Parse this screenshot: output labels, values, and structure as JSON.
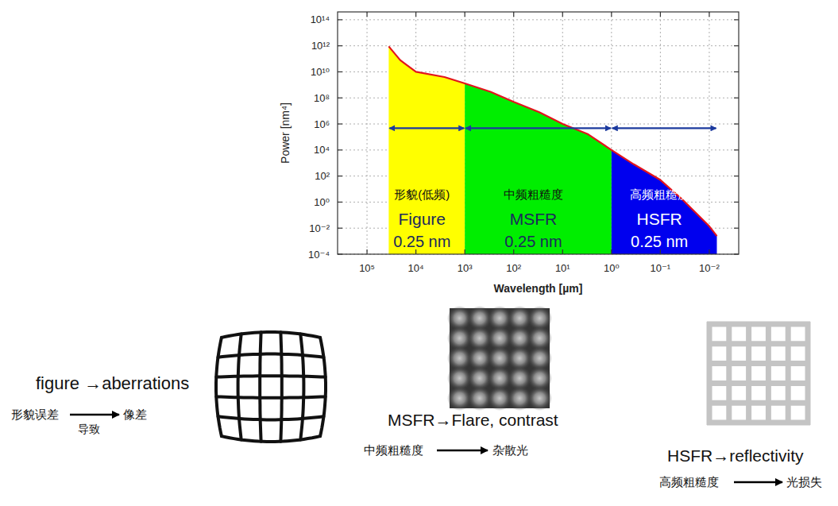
{
  "chart_data": {
    "type": "area",
    "log": true,
    "grid": true,
    "x_label": "Wavelength [µm]",
    "y_label": "Power [nm⁴]",
    "xlim": [
      400000,
      0.0025
    ],
    "ylim": [
      0.0001,
      400000000000000.0
    ],
    "xticks": [
      {
        "value": 100000,
        "label": "10⁵"
      },
      {
        "value": 10000,
        "label": "10⁴"
      },
      {
        "value": 1000,
        "label": "10³"
      },
      {
        "value": 100,
        "label": "10²"
      },
      {
        "value": 10,
        "label": "10¹"
      },
      {
        "value": 1,
        "label": "10⁰"
      },
      {
        "value": 0.1,
        "label": "10⁻¹"
      },
      {
        "value": 0.01,
        "label": "10⁻²"
      }
    ],
    "yticks": [
      {
        "value": 0.0001,
        "label": "10⁻⁴"
      },
      {
        "value": 0.01,
        "label": "10⁻²"
      },
      {
        "value": 1,
        "label": "10⁰"
      },
      {
        "value": 100,
        "label": "10²"
      },
      {
        "value": 10000,
        "label": "10⁴"
      },
      {
        "value": 1000000,
        "label": "10⁶"
      },
      {
        "value": 100000000,
        "label": "10⁸"
      },
      {
        "value": 10000000000,
        "label": "10¹⁰"
      },
      {
        "value": 1000000000000,
        "label": "10¹²"
      },
      {
        "value": 100000000000000,
        "label": "10¹⁴"
      }
    ],
    "x": [
      36000,
      21000,
      10000,
      2600,
      1000,
      300,
      100,
      30,
      10,
      3,
      1,
      0.35,
      0.1,
      0.035,
      0.01,
      0.007
    ],
    "values": [
      900000000000,
      80000000000,
      10000000000,
      4000000000,
      1300000000,
      300000000,
      50000000,
      8000000,
      1000000,
      160000,
      10000,
      800,
      50,
      1.5,
      0.014,
      0.0025
    ],
    "color": "#e3141c",
    "regions": [
      {
        "label": "形貌(低频)",
        "name": "Figure",
        "rms": "0.25 nm",
        "from": 36000,
        "to": 1000,
        "color": "#ffff00"
      },
      {
        "label": "中频粗糙度",
        "name": "MSFR",
        "rms": "0.25 nm",
        "from": 1000,
        "to": 1,
        "color": "#00ee00"
      },
      {
        "label": "高频粗糙度",
        "name": "HSFR",
        "rms": "0.25 nm",
        "from": 1,
        "to": 0.007,
        "color": "#0000ee"
      }
    ]
  },
  "illustrations": [
    {
      "caption": "figure →aberrations",
      "cause": "形貌误差",
      "verb": "导致",
      "effect": "像差"
    },
    {
      "caption": "MSFR→Flare, contrast",
      "cause": "中频粗糙度",
      "effect": "杂散光"
    },
    {
      "caption": "HSFR→reflectivity",
      "cause": "高频粗糙度",
      "effect": "光损失"
    }
  ]
}
